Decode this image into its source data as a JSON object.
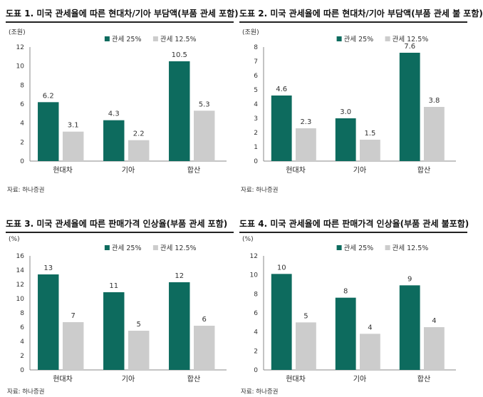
{
  "colors": {
    "series1": "#0d6b5e",
    "series2": "#cccccc"
  },
  "panels": [
    {
      "title": "도표 1. 미국 관세율에 따른 현대차/기아 부담액(부품 관세 포함)",
      "unit": "(조원)",
      "source": "자료: 하나증권"
    },
    {
      "title": "도표 2. 미국 관세율에 따른 현대차/기아 부담액(부품 관세 불 포함)",
      "unit": "(조원)",
      "source": "자료: 하나증권"
    },
    {
      "title": "도표 3. 미국 관세율에 따른 판매가격 인상율(부품 관세 포함)",
      "unit": "(%)",
      "source": "자료: 하나증권"
    },
    {
      "title": "도표 4. 미국 관세율에 따른 판매가격 인상율(부품 관세 불포함)",
      "unit": "(%)",
      "source": "자료: 하나증권"
    }
  ],
  "chart_data": [
    {
      "type": "bar",
      "categories": [
        "현대차",
        "기아",
        "합산"
      ],
      "ylabel": "(조원)",
      "ylim": [
        0,
        12
      ],
      "yticks": [
        0,
        2,
        4,
        6,
        8,
        10,
        12
      ],
      "legend": "top",
      "series": [
        {
          "name": "관세 25%",
          "values": [
            6.2,
            4.3,
            10.5
          ],
          "labels": [
            "6.2",
            "4.3",
            "10.5"
          ]
        },
        {
          "name": "관세 12.5%",
          "values": [
            3.1,
            2.2,
            5.3
          ],
          "labels": [
            "3.1",
            "2.2",
            "5.3"
          ]
        }
      ]
    },
    {
      "type": "bar",
      "categories": [
        "현대차",
        "기아",
        "합산"
      ],
      "ylabel": "(조원)",
      "ylim": [
        0,
        8
      ],
      "yticks": [
        0,
        1,
        2,
        3,
        4,
        5,
        6,
        7,
        8
      ],
      "legend": "top",
      "series": [
        {
          "name": "관세 25%",
          "values": [
            4.6,
            3.0,
            7.6
          ],
          "labels": [
            "4.6",
            "3.0",
            "7.6"
          ]
        },
        {
          "name": "관세 12.5%",
          "values": [
            2.3,
            1.5,
            3.8
          ],
          "labels": [
            "2.3",
            "1.5",
            "3.8"
          ]
        }
      ]
    },
    {
      "type": "bar",
      "categories": [
        "현대차",
        "기아",
        "합산"
      ],
      "ylabel": "(%)",
      "ylim": [
        0,
        16
      ],
      "yticks": [
        0,
        2,
        4,
        6,
        8,
        10,
        12,
        14,
        16
      ],
      "legend": "top",
      "series": [
        {
          "name": "관세 25%",
          "values": [
            13.4,
            10.9,
            12.3
          ],
          "labels": [
            "13",
            "11",
            "12"
          ]
        },
        {
          "name": "관세 12.5%",
          "values": [
            6.7,
            5.5,
            6.2
          ],
          "labels": [
            "7",
            "5",
            "6"
          ]
        }
      ]
    },
    {
      "type": "bar",
      "categories": [
        "현대차",
        "기아",
        "합산"
      ],
      "ylabel": "(%)",
      "ylim": [
        0,
        12
      ],
      "yticks": [
        0,
        2,
        4,
        6,
        8,
        10,
        12
      ],
      "legend": "top",
      "series": [
        {
          "name": "관세 25%",
          "values": [
            10.1,
            7.6,
            8.9
          ],
          "labels": [
            "10",
            "8",
            "9"
          ]
        },
        {
          "name": "관세 12.5%",
          "values": [
            5.0,
            3.8,
            4.5
          ],
          "labels": [
            "5",
            "4",
            "4"
          ]
        }
      ]
    }
  ]
}
